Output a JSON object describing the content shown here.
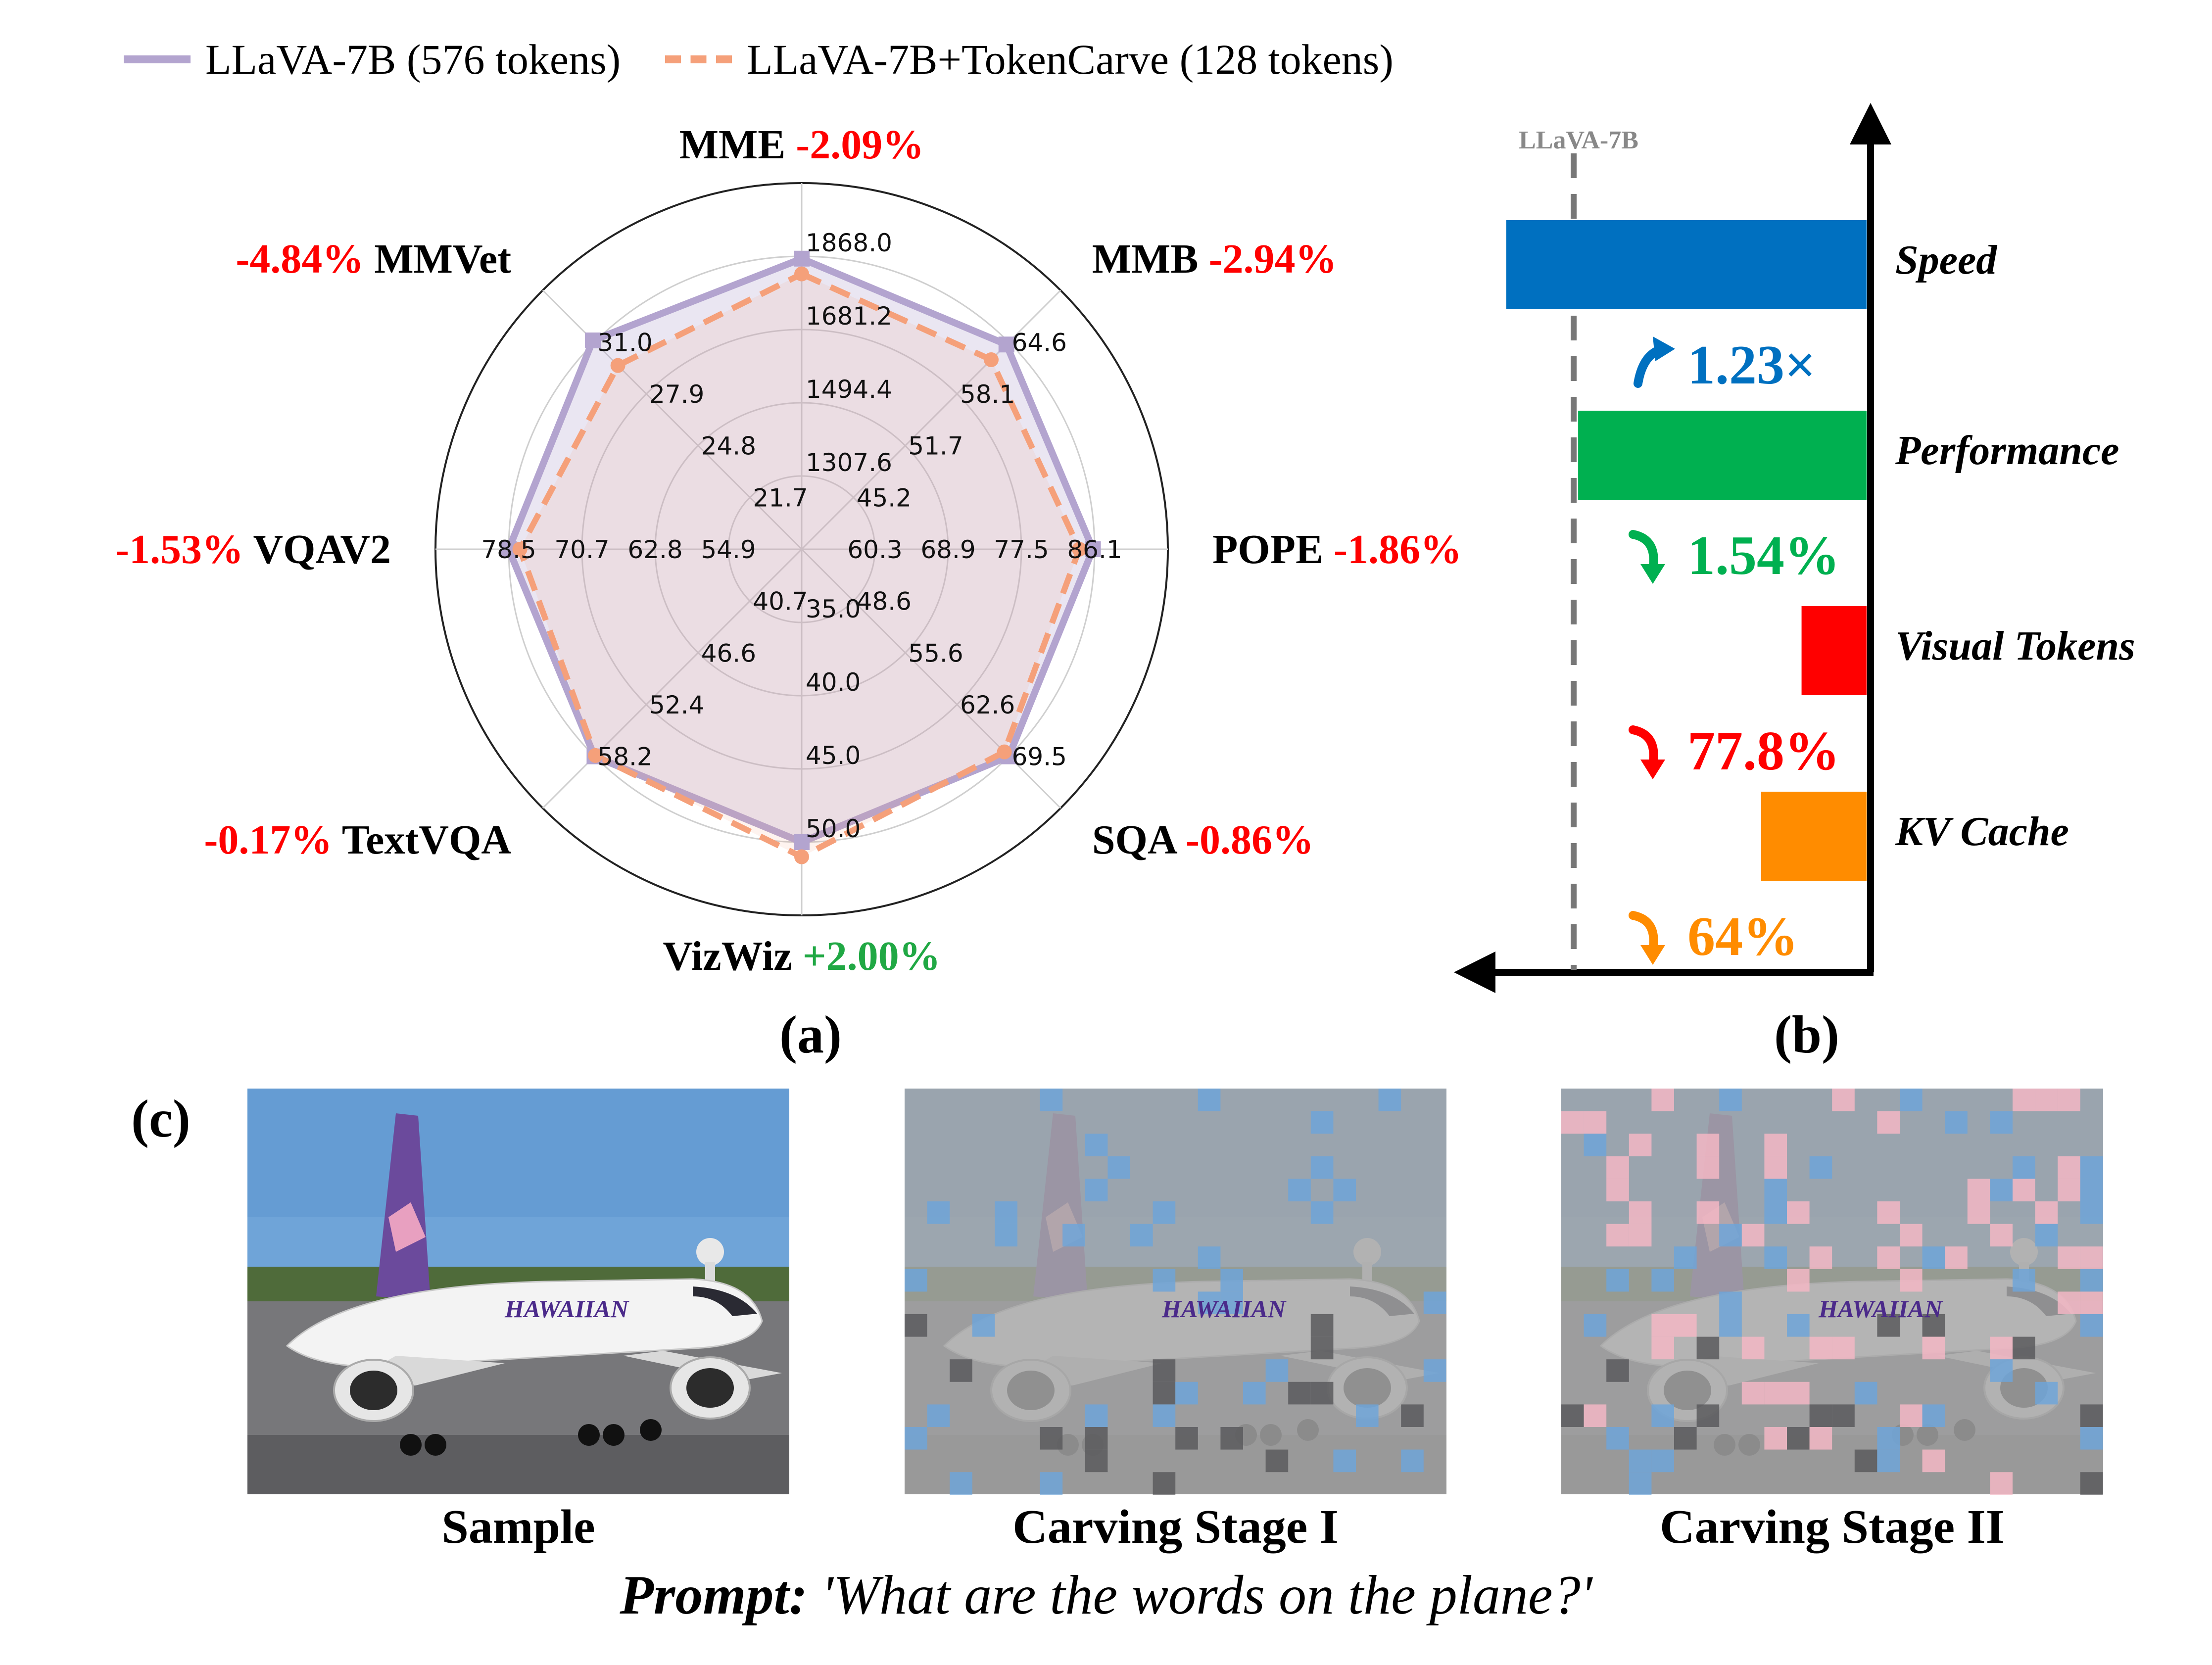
{
  "legend": {
    "series_a": "LLaVA-7B (576 tokens)",
    "series_b": "LLaVA-7B+TokenCarve (128 tokens)"
  },
  "panel_labels": {
    "a": "(a)",
    "b": "(b)",
    "c": "(c)"
  },
  "colors": {
    "baseline": "#b3a4cf",
    "tokencarve": "#f5a07a",
    "negative": "#ff0000",
    "positive": "#20a844",
    "speed": "#0070c0",
    "performance": "#00b050",
    "visual_tokens": "#ff0000",
    "kv_cache": "#ff8c00"
  },
  "chart_data": [
    {
      "type": "radar",
      "axes": [
        {
          "name": "MME",
          "change": "-2.09%",
          "ticks": [
            "1307.6",
            "1494.4",
            "1681.2",
            "1868.0"
          ],
          "baseline": 1862,
          "tokencarve": 1823
        },
        {
          "name": "MMB",
          "change": "-2.94%",
          "ticks": [
            "45.2",
            "51.7",
            "58.1",
            "64.6"
          ],
          "baseline": 64.3,
          "tokencarve": 62.4
        },
        {
          "name": "POPE",
          "change": "-1.86%",
          "ticks": [
            "60.3",
            "68.9",
            "77.5",
            "86.1"
          ],
          "baseline": 85.9,
          "tokencarve": 84.3
        },
        {
          "name": "SQA",
          "change": "-0.86%",
          "ticks": [
            "48.6",
            "55.6",
            "62.6",
            "69.5"
          ],
          "baseline": 69.5,
          "tokencarve": 68.9
        },
        {
          "name": "VizWiz",
          "change": "+2.00%",
          "ticks": [
            "35.0",
            "40.0",
            "45.0",
            "50.0"
          ],
          "baseline": 50.0,
          "tokencarve": 51.0
        },
        {
          "name": "TextVQA",
          "change": "-0.17%",
          "ticks": [
            "40.7",
            "46.6",
            "52.4",
            "58.2"
          ],
          "baseline": 58.2,
          "tokencarve": 58.1
        },
        {
          "name": "VQAV2",
          "change": "-1.53%",
          "ticks": [
            "54.9",
            "62.8",
            "70.7",
            "78.5"
          ],
          "baseline": 78.5,
          "tokencarve": 77.3
        },
        {
          "name": "MMVet",
          "change": "-4.84%",
          "ticks": [
            "21.7",
            "24.8",
            "27.9",
            "31.0"
          ],
          "baseline": 31.1,
          "tokencarve": 29.6
        }
      ]
    },
    {
      "type": "bar",
      "reference_label": "LLaVA-7B",
      "categories": [
        "Speed",
        "Performance",
        "Visual Tokens",
        "KV Cache"
      ],
      "values": [
        1.23,
        0.9846,
        0.222,
        0.36
      ],
      "changes": [
        "1.23×",
        "1.54%",
        "77.8%",
        "64%"
      ],
      "directions": [
        "up",
        "down",
        "down",
        "down"
      ]
    }
  ],
  "images": {
    "sample_caption": "Sample",
    "stage1_caption": "Carving Stage I",
    "stage2_caption": "Carving Stage II",
    "airline_text": "HAWAIIAN"
  },
  "prompt": {
    "label": "Prompt:",
    "text": "'What are the words on the plane?'"
  }
}
